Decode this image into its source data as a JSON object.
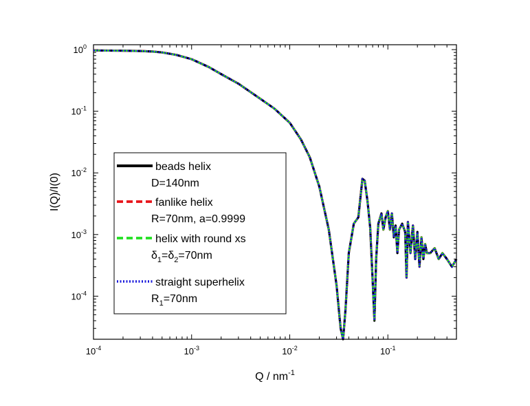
{
  "chart_data": {
    "type": "line",
    "xlabel": "Q / nm",
    "xlabel_sup": "-1",
    "ylabel": "I(Q)/I(0)",
    "xscale": "log",
    "yscale": "log",
    "xlim": [
      0.0001,
      0.5
    ],
    "ylim": [
      2e-05,
      1.2
    ],
    "x_ticks": [
      {
        "base": "10",
        "exp": "-4",
        "value": 0.0001
      },
      {
        "base": "10",
        "exp": "-3",
        "value": 0.001
      },
      {
        "base": "10",
        "exp": "-2",
        "value": 0.01
      },
      {
        "base": "10",
        "exp": "-1",
        "value": 0.1
      }
    ],
    "y_ticks": [
      {
        "base": "10",
        "exp": "-4",
        "value": 0.0001
      },
      {
        "base": "10",
        "exp": "-3",
        "value": 0.001
      },
      {
        "base": "10",
        "exp": "-2",
        "value": 0.01
      },
      {
        "base": "10",
        "exp": "-1",
        "value": 0.1
      },
      {
        "base": "10",
        "exp": "0",
        "value": 1
      }
    ],
    "legend_position": "left-center",
    "x": [
      0.0001,
      0.0002,
      0.0003,
      0.0004,
      0.0005,
      0.0007,
      0.001,
      0.0015,
      0.002,
      0.003,
      0.005,
      0.007,
      0.01,
      0.013,
      0.016,
      0.02,
      0.025,
      0.03,
      0.033,
      0.035,
      0.037,
      0.04,
      0.045,
      0.05,
      0.055,
      0.058,
      0.062,
      0.066,
      0.07,
      0.073,
      0.076,
      0.08,
      0.086,
      0.09,
      0.095,
      0.1,
      0.105,
      0.11,
      0.115,
      0.12,
      0.125,
      0.13,
      0.14,
      0.15,
      0.155,
      0.16,
      0.17,
      0.18,
      0.19,
      0.2,
      0.21,
      0.22,
      0.23,
      0.24,
      0.25,
      0.27,
      0.3,
      0.33,
      0.36,
      0.4,
      0.45,
      0.5
    ],
    "series": [
      {
        "name": "beads helix",
        "sublabel": "D=140nm",
        "color": "#000000",
        "style": "solid",
        "values": [
          0.97,
          0.96,
          0.95,
          0.93,
          0.9,
          0.82,
          0.7,
          0.52,
          0.4,
          0.28,
          0.16,
          0.11,
          0.065,
          0.035,
          0.018,
          0.006,
          0.0012,
          0.00015,
          3e-05,
          2e-05,
          6e-05,
          0.0005,
          0.0015,
          0.0019,
          0.008,
          0.0075,
          0.0035,
          0.0013,
          0.00018,
          4e-05,
          0.0004,
          0.0015,
          0.0022,
          0.0012,
          0.0019,
          0.0024,
          0.0012,
          0.0022,
          0.0009,
          0.0014,
          0.0005,
          0.0012,
          0.0015,
          0.0011,
          0.0002,
          0.0016,
          0.0005,
          0.0014,
          0.0004,
          0.0011,
          0.0003,
          0.0009,
          0.0004,
          0.0007,
          0.0005,
          0.0005,
          0.0006,
          0.0004,
          0.0005,
          0.0004,
          0.0003,
          0.0004
        ]
      },
      {
        "name": "fanlike helix",
        "sublabel": "R=70nm, a=0.9999",
        "color": "#e8141a",
        "style": "dashed",
        "values": [
          0.97,
          0.96,
          0.95,
          0.93,
          0.9,
          0.82,
          0.7,
          0.52,
          0.4,
          0.28,
          0.16,
          0.11,
          0.065,
          0.035,
          0.018,
          0.006,
          0.0012,
          0.00015,
          3e-05,
          2e-05,
          6e-05,
          0.0005,
          0.0015,
          0.0019,
          0.008,
          0.0075,
          0.0035,
          0.0013,
          0.00018,
          4e-05,
          0.0004,
          0.0015,
          0.0022,
          0.0012,
          0.0019,
          0.0024,
          0.0012,
          0.0022,
          0.0009,
          0.0014,
          0.0005,
          0.0012,
          0.0015,
          0.0011,
          0.0002,
          0.0016,
          0.0005,
          0.0014,
          0.0004,
          0.0011,
          0.0003,
          0.0009,
          0.0004,
          0.0007,
          0.0005,
          0.0005,
          0.0006,
          0.0004,
          0.0005,
          0.0004,
          0.0003,
          0.0004
        ]
      },
      {
        "name": "helix with round xs",
        "sublabel_parts": [
          "δ",
          "1",
          "=δ",
          "2",
          "=70nm"
        ],
        "color": "#22e022",
        "style": "dashed",
        "values": [
          0.97,
          0.96,
          0.95,
          0.93,
          0.9,
          0.82,
          0.7,
          0.52,
          0.4,
          0.28,
          0.16,
          0.11,
          0.065,
          0.035,
          0.018,
          0.006,
          0.0012,
          0.00015,
          3e-05,
          2e-05,
          6e-05,
          0.0005,
          0.0015,
          0.0019,
          0.008,
          0.0075,
          0.0035,
          0.0013,
          0.00018,
          4e-05,
          0.0004,
          0.0015,
          0.0022,
          0.0012,
          0.0019,
          0.0024,
          0.0012,
          0.0022,
          0.0009,
          0.0014,
          0.0005,
          0.0012,
          0.0015,
          0.0011,
          0.0002,
          0.0016,
          0.0005,
          0.0014,
          0.0004,
          0.0011,
          0.0003,
          0.0009,
          0.0004,
          0.0007,
          0.0005,
          0.0005,
          0.0006,
          0.0004,
          0.0005,
          0.0004,
          0.0003,
          0.0004
        ]
      },
      {
        "name": "straight superhelix",
        "sublabel_parts": [
          "R",
          "1",
          "=70nm"
        ],
        "color": "#1a1adc",
        "style": "dotted",
        "values": [
          0.97,
          0.96,
          0.95,
          0.93,
          0.9,
          0.82,
          0.7,
          0.52,
          0.4,
          0.28,
          0.16,
          0.11,
          0.065,
          0.035,
          0.018,
          0.006,
          0.0012,
          0.00015,
          3e-05,
          2e-05,
          6e-05,
          0.0005,
          0.0015,
          0.0019,
          0.008,
          0.0075,
          0.0035,
          0.0013,
          0.00018,
          4e-05,
          0.0004,
          0.0015,
          0.0022,
          0.0012,
          0.0019,
          0.0024,
          0.0012,
          0.0022,
          0.0009,
          0.0014,
          0.0005,
          0.0012,
          0.0015,
          0.0011,
          0.0002,
          0.0016,
          0.0005,
          0.0014,
          0.0004,
          0.0011,
          0.0003,
          0.0009,
          0.0004,
          0.0007,
          0.0005,
          0.0005,
          0.0006,
          0.0004,
          0.0005,
          0.0004,
          0.0003,
          0.0004
        ]
      }
    ]
  }
}
